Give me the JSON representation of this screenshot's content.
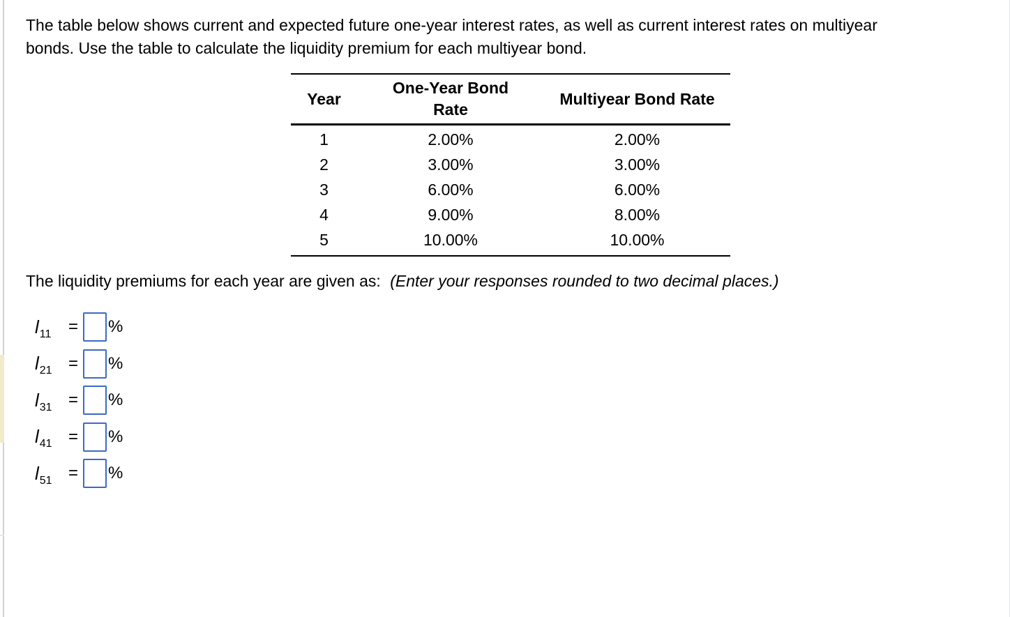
{
  "intro": {
    "line1": "The table below shows current and expected future one-year interest rates, as well as current interest rates on multiyear",
    "line2": "bonds. Use the table to calculate the liquidity premium for each multiyear bond."
  },
  "rates_table": {
    "columns": [
      "Year",
      "One-Year Bond Rate",
      "Multiyear Bond Rate"
    ],
    "rows": [
      {
        "year": "1",
        "one_year": "2.00%",
        "multiyear": "2.00%"
      },
      {
        "year": "2",
        "one_year": "3.00%",
        "multiyear": "3.00%"
      },
      {
        "year": "3",
        "one_year": "6.00%",
        "multiyear": "6.00%"
      },
      {
        "year": "4",
        "one_year": "9.00%",
        "multiyear": "8.00%"
      },
      {
        "year": "5",
        "one_year": "10.00%",
        "multiyear": "10.00%"
      }
    ]
  },
  "prompt": {
    "text": "The liquidity premiums for each year are given as:",
    "note": "(Enter your responses rounded to two decimal places.)"
  },
  "answers": {
    "symbol": "l",
    "equals": "=",
    "unit": "%",
    "items": [
      {
        "subscript": "11",
        "value": ""
      },
      {
        "subscript": "21",
        "value": ""
      },
      {
        "subscript": "31",
        "value": ""
      },
      {
        "subscript": "41",
        "value": ""
      },
      {
        "subscript": "51",
        "value": ""
      }
    ]
  },
  "colors": {
    "input_border": "#3B6AC6",
    "table_rule": "#000000",
    "left_line": "#ccd1d7",
    "left_strip": "#f2ebc9"
  }
}
